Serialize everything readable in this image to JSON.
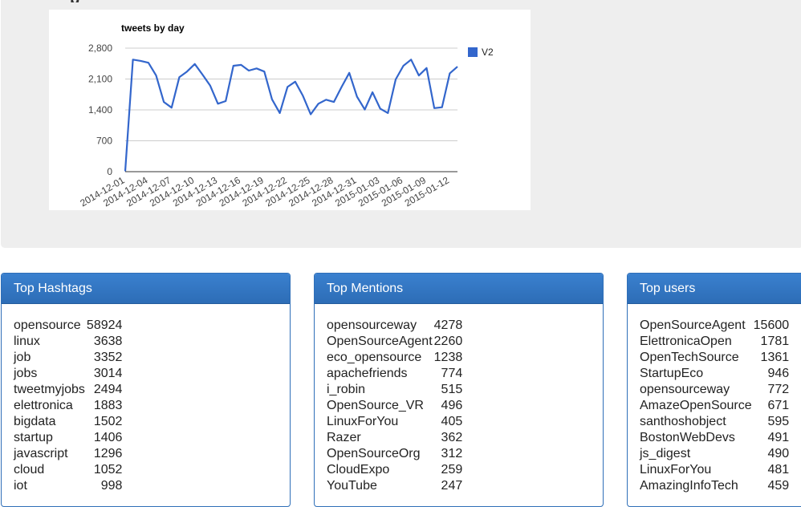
{
  "chart_data": {
    "type": "line",
    "title": "tweets by day",
    "xlabel": "",
    "ylabel": "",
    "ylim": [
      0,
      2800
    ],
    "yticks": [
      "0",
      "700",
      "1,400",
      "2,100",
      "2,800"
    ],
    "grid": true,
    "legend_position": "right",
    "x_tick_labels": [
      "2014-12-01",
      "2014-12-04",
      "2014-12-07",
      "2014-12-10",
      "2014-12-13",
      "2014-12-16",
      "2014-12-19",
      "2014-12-22",
      "2014-12-25",
      "2014-12-28",
      "2014-12-31",
      "2015-01-03",
      "2015-01-06",
      "2015-01-09",
      "2015-01-12"
    ],
    "x": [
      "2014-12-01",
      "2014-12-02",
      "2014-12-03",
      "2014-12-04",
      "2014-12-05",
      "2014-12-06",
      "2014-12-07",
      "2014-12-08",
      "2014-12-09",
      "2014-12-10",
      "2014-12-11",
      "2014-12-12",
      "2014-12-13",
      "2014-12-14",
      "2014-12-15",
      "2014-12-16",
      "2014-12-17",
      "2014-12-18",
      "2014-12-19",
      "2014-12-20",
      "2014-12-21",
      "2014-12-22",
      "2014-12-23",
      "2014-12-24",
      "2014-12-25",
      "2014-12-26",
      "2014-12-27",
      "2014-12-28",
      "2014-12-29",
      "2014-12-30",
      "2014-12-31",
      "2015-01-01",
      "2015-01-02",
      "2015-01-03",
      "2015-01-04",
      "2015-01-05",
      "2015-01-06",
      "2015-01-07",
      "2015-01-08",
      "2015-01-09",
      "2015-01-10",
      "2015-01-11",
      "2015-01-12",
      "2015-01-13"
    ],
    "series": [
      {
        "name": "V2",
        "color": "#3366cc",
        "values": [
          10,
          2540,
          2510,
          2470,
          2180,
          1580,
          1450,
          2140,
          2270,
          2440,
          2200,
          1950,
          1540,
          1600,
          2400,
          2420,
          2290,
          2340,
          2270,
          1640,
          1330,
          1920,
          2040,
          1720,
          1300,
          1540,
          1630,
          1580,
          1920,
          2240,
          1700,
          1410,
          1800,
          1430,
          1330,
          2090,
          2400,
          2540,
          2180,
          2350,
          1440,
          1460,
          2230,
          2380
        ]
      }
    ]
  },
  "panels": [
    {
      "title": "Top Hashtags",
      "rows": [
        {
          "name": "opensource",
          "count": "58924"
        },
        {
          "name": "linux",
          "count": "3638"
        },
        {
          "name": "job",
          "count": "3352"
        },
        {
          "name": "jobs",
          "count": "3014"
        },
        {
          "name": "tweetmyjobs",
          "count": "2494"
        },
        {
          "name": "elettronica",
          "count": "1883"
        },
        {
          "name": "bigdata",
          "count": "1502"
        },
        {
          "name": "startup",
          "count": "1406"
        },
        {
          "name": "javascript",
          "count": "1296"
        },
        {
          "name": "cloud",
          "count": "1052"
        },
        {
          "name": "iot",
          "count": "998"
        }
      ]
    },
    {
      "title": "Top Mentions",
      "rows": [
        {
          "name": "opensourceway",
          "count": "4278"
        },
        {
          "name": "OpenSourceAgent",
          "count": "2260"
        },
        {
          "name": "eco_opensource",
          "count": "1238"
        },
        {
          "name": "apachefriends",
          "count": "774"
        },
        {
          "name": "i_robin",
          "count": "515"
        },
        {
          "name": "OpenSource_VR",
          "count": "496"
        },
        {
          "name": "LinuxForYou",
          "count": "405"
        },
        {
          "name": "Razer",
          "count": "362"
        },
        {
          "name": "OpenSourceOrg",
          "count": "312"
        },
        {
          "name": "CloudExpo",
          "count": "259"
        },
        {
          "name": "YouTube",
          "count": "247"
        }
      ]
    },
    {
      "title": "Top users",
      "rows": [
        {
          "name": "OpenSourceAgent",
          "count": "15600"
        },
        {
          "name": "ElettronicaOpen",
          "count": "1781"
        },
        {
          "name": "OpenTechSource",
          "count": "1361"
        },
        {
          "name": "StartupEco",
          "count": "946"
        },
        {
          "name": "opensourceway",
          "count": "772"
        },
        {
          "name": "AmazeOpenSource",
          "count": "671"
        },
        {
          "name": "santhoshobject",
          "count": "595"
        },
        {
          "name": "BostonWebDevs",
          "count": "491"
        },
        {
          "name": "js_digest",
          "count": "490"
        },
        {
          "name": "LinuxForYou",
          "count": "481"
        },
        {
          "name": "AmazingInfoTech",
          "count": "459"
        }
      ]
    }
  ]
}
